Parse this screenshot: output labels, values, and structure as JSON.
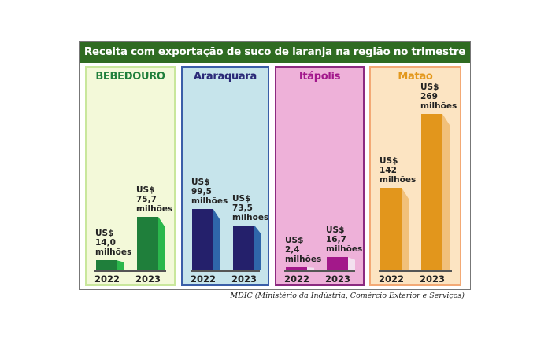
{
  "chart_data": {
    "type": "bar",
    "title": "Receita com exportação de suco de laranja na região no trimestre",
    "source": "MDIC (Ministério da Indústria, Comércio Exterior e Serviços)",
    "categories": [
      "2022",
      "2023"
    ],
    "unit_prefix": "US$",
    "unit_suffix": "milhões",
    "panels": [
      {
        "name": "BEBEDOURO",
        "values": [
          14.0,
          75.7
        ],
        "labels": [
          "14,0",
          "75,7"
        ],
        "bg": "#f3f9d9",
        "border": "#c9e79c",
        "title_color": "#1f7f3b",
        "bar": "#1f7f3b",
        "side": "#2bb74c"
      },
      {
        "name": "Araraquara",
        "values": [
          99.5,
          73.5
        ],
        "labels": [
          "99,5",
          "73,5"
        ],
        "bg": "#c6e4eb",
        "border": "#3a5ea8",
        "title_color": "#2b2a78",
        "bar": "#24206b",
        "side": "#2f66aa"
      },
      {
        "name": "Itápolis",
        "values": [
          2.4,
          16.7
        ],
        "labels": [
          "2,4",
          "16,7"
        ],
        "bg": "#eeb1d9",
        "border": "#8c2a80",
        "title_color": "#a3188c",
        "bar": "#a3188a",
        "side": "#f3e0ef"
      },
      {
        "name": "Matão",
        "values": [
          142,
          269
        ],
        "labels": [
          "142",
          "269"
        ],
        "bg": "#fce4c2",
        "border": "#f3a975",
        "title_color": "#e3981c",
        "bar": "#e2961c",
        "side": "#f1c07a"
      }
    ]
  }
}
